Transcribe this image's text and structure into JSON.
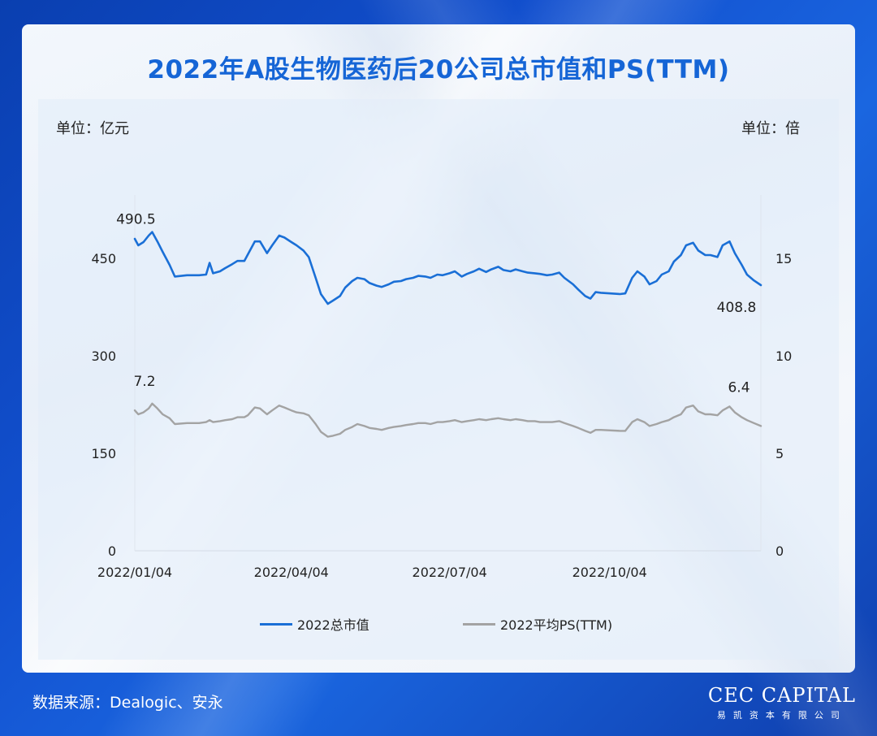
{
  "page": {
    "title": "2022年A股生物医药后20公司总市值和PS(TTM)",
    "unit_left": "单位：亿元",
    "unit_right": "单位：倍",
    "source": "数据来源：Dealogic、安永",
    "logo_main": "CEC CAPITAL",
    "logo_sub": "易凯资本有限公司"
  },
  "colors": {
    "market_cap": "#1a6fd6",
    "ps": "#a3a3a3",
    "title": "#1565d6"
  },
  "chart_data": {
    "type": "line",
    "title": "2022年A股生物医药后20公司总市值和PS(TTM)",
    "x": {
      "tick_labels": [
        "2022/01/04",
        "2022/04/04",
        "2022/07/04",
        "2022/10/04"
      ],
      "range": [
        "2022/01/04",
        "2022/12/30"
      ]
    },
    "y_left": {
      "label": "单位：亿元",
      "ticks": [
        0,
        150,
        300,
        450
      ],
      "range": [
        0,
        550
      ]
    },
    "y_right": {
      "label": "单位：倍",
      "ticks": [
        0,
        5,
        10,
        15
      ],
      "range": [
        0,
        18.333
      ]
    },
    "annotations": [
      {
        "series": "2022总市值",
        "x": "2022/01/14",
        "value": 490.5,
        "label": "490.5"
      },
      {
        "series": "2022总市值",
        "x": "2022/12/30",
        "value": 408.8,
        "label": "408.8"
      },
      {
        "series": "2022平均PS(TTM)",
        "x": "2022/01/04",
        "value": 7.2,
        "label": "7.2"
      },
      {
        "series": "2022平均PS(TTM)",
        "x": "2022/12/30",
        "value": 6.4,
        "label": "6.4"
      }
    ],
    "legend_position": "bottom",
    "grid": false,
    "series": [
      {
        "name": "2022总市值",
        "axis": "left",
        "points": [
          [
            "2022/01/04",
            480
          ],
          [
            "2022/01/06",
            470
          ],
          [
            "2022/01/09",
            475
          ],
          [
            "2022/01/12",
            485
          ],
          [
            "2022/01/14",
            490.5
          ],
          [
            "2022/01/17",
            476
          ],
          [
            "2022/01/20",
            460
          ],
          [
            "2022/01/24",
            440
          ],
          [
            "2022/01/27",
            422
          ],
          [
            "2022/02/03",
            424
          ],
          [
            "2022/02/10",
            424
          ],
          [
            "2022/02/14",
            425
          ],
          [
            "2022/02/16",
            443
          ],
          [
            "2022/02/18",
            427
          ],
          [
            "2022/02/22",
            430
          ],
          [
            "2022/02/25",
            435
          ],
          [
            "2022/03/01",
            441
          ],
          [
            "2022/03/04",
            446
          ],
          [
            "2022/03/08",
            446
          ],
          [
            "2022/03/10",
            456
          ],
          [
            "2022/03/14",
            476
          ],
          [
            "2022/03/17",
            476
          ],
          [
            "2022/03/21",
            458
          ],
          [
            "2022/03/24",
            470
          ],
          [
            "2022/03/28",
            485
          ],
          [
            "2022/03/31",
            482
          ],
          [
            "2022/04/04",
            475
          ],
          [
            "2022/04/07",
            470
          ],
          [
            "2022/04/11",
            462
          ],
          [
            "2022/04/14",
            452
          ],
          [
            "2022/04/18",
            420
          ],
          [
            "2022/04/21",
            395
          ],
          [
            "2022/04/25",
            380
          ],
          [
            "2022/04/28",
            385
          ],
          [
            "2022/05/02",
            392
          ],
          [
            "2022/05/05",
            405
          ],
          [
            "2022/05/09",
            415
          ],
          [
            "2022/05/12",
            420
          ],
          [
            "2022/05/16",
            418
          ],
          [
            "2022/05/19",
            412
          ],
          [
            "2022/05/23",
            408
          ],
          [
            "2022/05/26",
            406
          ],
          [
            "2022/05/30",
            410
          ],
          [
            "2022/06/02",
            414
          ],
          [
            "2022/06/06",
            415
          ],
          [
            "2022/06/09",
            418
          ],
          [
            "2022/06/13",
            420
          ],
          [
            "2022/06/16",
            423
          ],
          [
            "2022/06/20",
            422
          ],
          [
            "2022/06/23",
            420
          ],
          [
            "2022/06/27",
            425
          ],
          [
            "2022/06/30",
            424
          ],
          [
            "2022/07/04",
            427
          ],
          [
            "2022/07/07",
            430
          ],
          [
            "2022/07/11",
            422
          ],
          [
            "2022/07/14",
            426
          ],
          [
            "2022/07/18",
            430
          ],
          [
            "2022/07/21",
            434
          ],
          [
            "2022/07/25",
            429
          ],
          [
            "2022/07/28",
            433
          ],
          [
            "2022/08/01",
            437
          ],
          [
            "2022/08/04",
            432
          ],
          [
            "2022/08/08",
            430
          ],
          [
            "2022/08/11",
            433
          ],
          [
            "2022/08/15",
            430
          ],
          [
            "2022/08/18",
            428
          ],
          [
            "2022/08/22",
            427
          ],
          [
            "2022/08/25",
            426
          ],
          [
            "2022/08/29",
            424
          ],
          [
            "2022/09/01",
            425
          ],
          [
            "2022/09/05",
            428
          ],
          [
            "2022/09/08",
            420
          ],
          [
            "2022/09/13",
            410
          ],
          [
            "2022/09/16",
            402
          ],
          [
            "2022/09/20",
            392
          ],
          [
            "2022/09/23",
            388
          ],
          [
            "2022/09/26",
            398
          ],
          [
            "2022/09/29",
            397
          ],
          [
            "2022/10/10",
            395
          ],
          [
            "2022/10/13",
            396
          ],
          [
            "2022/10/17",
            420
          ],
          [
            "2022/10/20",
            430
          ],
          [
            "2022/10/24",
            422
          ],
          [
            "2022/10/27",
            410
          ],
          [
            "2022/10/31",
            415
          ],
          [
            "2022/11/03",
            425
          ],
          [
            "2022/11/07",
            430
          ],
          [
            "2022/11/10",
            445
          ],
          [
            "2022/11/14",
            455
          ],
          [
            "2022/11/17",
            470
          ],
          [
            "2022/11/21",
            474
          ],
          [
            "2022/11/24",
            462
          ],
          [
            "2022/11/28",
            455
          ],
          [
            "2022/12/01",
            455
          ],
          [
            "2022/12/05",
            452
          ],
          [
            "2022/12/08",
            470
          ],
          [
            "2022/12/12",
            476
          ],
          [
            "2022/12/15",
            458
          ],
          [
            "2022/12/19",
            440
          ],
          [
            "2022/12/22",
            425
          ],
          [
            "2022/12/26",
            416
          ],
          [
            "2022/12/30",
            408.8
          ]
        ]
      },
      {
        "name": "2022平均PS(TTM)",
        "axis": "right",
        "points": [
          [
            "2022/01/04",
            7.2
          ],
          [
            "2022/01/06",
            7.0
          ],
          [
            "2022/01/09",
            7.1
          ],
          [
            "2022/01/12",
            7.3
          ],
          [
            "2022/01/14",
            7.55
          ],
          [
            "2022/01/17",
            7.3
          ],
          [
            "2022/01/20",
            7.0
          ],
          [
            "2022/01/24",
            6.8
          ],
          [
            "2022/01/27",
            6.5
          ],
          [
            "2022/02/03",
            6.55
          ],
          [
            "2022/02/10",
            6.55
          ],
          [
            "2022/02/14",
            6.6
          ],
          [
            "2022/02/16",
            6.7
          ],
          [
            "2022/02/18",
            6.6
          ],
          [
            "2022/02/22",
            6.65
          ],
          [
            "2022/02/25",
            6.7
          ],
          [
            "2022/03/01",
            6.75
          ],
          [
            "2022/03/04",
            6.85
          ],
          [
            "2022/03/08",
            6.85
          ],
          [
            "2022/03/10",
            6.95
          ],
          [
            "2022/03/14",
            7.35
          ],
          [
            "2022/03/17",
            7.3
          ],
          [
            "2022/03/21",
            7.0
          ],
          [
            "2022/03/24",
            7.2
          ],
          [
            "2022/03/28",
            7.45
          ],
          [
            "2022/03/31",
            7.35
          ],
          [
            "2022/04/04",
            7.2
          ],
          [
            "2022/04/07",
            7.1
          ],
          [
            "2022/04/11",
            7.05
          ],
          [
            "2022/04/14",
            6.95
          ],
          [
            "2022/04/18",
            6.5
          ],
          [
            "2022/04/21",
            6.1
          ],
          [
            "2022/04/25",
            5.85
          ],
          [
            "2022/04/28",
            5.9
          ],
          [
            "2022/05/02",
            6.0
          ],
          [
            "2022/05/05",
            6.2
          ],
          [
            "2022/05/09",
            6.35
          ],
          [
            "2022/05/12",
            6.5
          ],
          [
            "2022/05/16",
            6.4
          ],
          [
            "2022/05/19",
            6.3
          ],
          [
            "2022/05/23",
            6.25
          ],
          [
            "2022/05/26",
            6.2
          ],
          [
            "2022/05/30",
            6.3
          ],
          [
            "2022/06/02",
            6.35
          ],
          [
            "2022/06/06",
            6.4
          ],
          [
            "2022/06/09",
            6.45
          ],
          [
            "2022/06/13",
            6.5
          ],
          [
            "2022/06/16",
            6.55
          ],
          [
            "2022/06/20",
            6.55
          ],
          [
            "2022/06/23",
            6.5
          ],
          [
            "2022/06/27",
            6.6
          ],
          [
            "2022/06/30",
            6.6
          ],
          [
            "2022/07/04",
            6.65
          ],
          [
            "2022/07/07",
            6.7
          ],
          [
            "2022/07/11",
            6.6
          ],
          [
            "2022/07/14",
            6.65
          ],
          [
            "2022/07/18",
            6.7
          ],
          [
            "2022/07/21",
            6.75
          ],
          [
            "2022/07/25",
            6.7
          ],
          [
            "2022/07/28",
            6.75
          ],
          [
            "2022/08/01",
            6.8
          ],
          [
            "2022/08/04",
            6.75
          ],
          [
            "2022/08/08",
            6.7
          ],
          [
            "2022/08/11",
            6.75
          ],
          [
            "2022/08/15",
            6.7
          ],
          [
            "2022/08/18",
            6.65
          ],
          [
            "2022/08/22",
            6.65
          ],
          [
            "2022/08/25",
            6.6
          ],
          [
            "2022/08/29",
            6.6
          ],
          [
            "2022/09/01",
            6.6
          ],
          [
            "2022/09/05",
            6.65
          ],
          [
            "2022/09/08",
            6.55
          ],
          [
            "2022/09/13",
            6.4
          ],
          [
            "2022/09/16",
            6.3
          ],
          [
            "2022/09/20",
            6.15
          ],
          [
            "2022/09/23",
            6.05
          ],
          [
            "2022/09/26",
            6.2
          ],
          [
            "2022/09/29",
            6.2
          ],
          [
            "2022/10/10",
            6.15
          ],
          [
            "2022/10/13",
            6.15
          ],
          [
            "2022/10/17",
            6.6
          ],
          [
            "2022/10/20",
            6.75
          ],
          [
            "2022/10/24",
            6.6
          ],
          [
            "2022/10/27",
            6.4
          ],
          [
            "2022/10/31",
            6.5
          ],
          [
            "2022/11/03",
            6.6
          ],
          [
            "2022/11/07",
            6.7
          ],
          [
            "2022/11/10",
            6.85
          ],
          [
            "2022/11/14",
            7.0
          ],
          [
            "2022/11/17",
            7.35
          ],
          [
            "2022/11/21",
            7.45
          ],
          [
            "2022/11/24",
            7.15
          ],
          [
            "2022/11/28",
            7.0
          ],
          [
            "2022/12/01",
            7.0
          ],
          [
            "2022/12/05",
            6.95
          ],
          [
            "2022/12/08",
            7.2
          ],
          [
            "2022/12/12",
            7.4
          ],
          [
            "2022/12/15",
            7.1
          ],
          [
            "2022/12/19",
            6.85
          ],
          [
            "2022/12/22",
            6.7
          ],
          [
            "2022/12/26",
            6.55
          ],
          [
            "2022/12/30",
            6.4
          ]
        ]
      }
    ]
  }
}
